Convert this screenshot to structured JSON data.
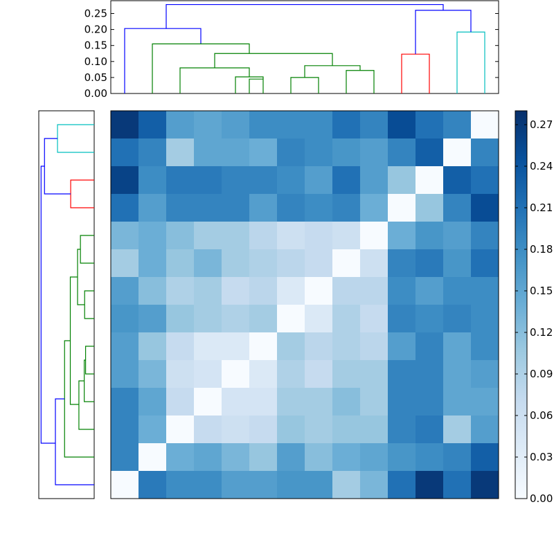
{
  "chart_data": {
    "type": "heatmap",
    "title": "",
    "xlabel": "",
    "ylabel": "",
    "colormap": "Blues",
    "colormap_stops": [
      "#f7fbff",
      "#deebf7",
      "#c6dbef",
      "#9ecae1",
      "#6baed6",
      "#4292c6",
      "#2171b5",
      "#08519c",
      "#08306b"
    ],
    "clim": [
      0,
      0.28
    ],
    "colorbar": {
      "ticks": [
        0.0,
        0.03,
        0.06,
        0.09,
        0.12,
        0.15,
        0.18,
        0.21,
        0.24,
        0.27
      ],
      "tick_labels": [
        "0.00",
        "0.03",
        "0.06",
        "0.09",
        "0.12",
        "0.15",
        "0.18",
        "0.21",
        "0.24",
        "0.27"
      ]
    },
    "matrix": [
      [
        0.27,
        0.23,
        0.16,
        0.15,
        0.16,
        0.18,
        0.18,
        0.18,
        0.21,
        0.19,
        0.25,
        0.21,
        0.19,
        0.0
      ],
      [
        0.21,
        0.19,
        0.1,
        0.15,
        0.15,
        0.14,
        0.19,
        0.18,
        0.17,
        0.16,
        0.19,
        0.23,
        0.0,
        0.19
      ],
      [
        0.26,
        0.18,
        0.2,
        0.2,
        0.19,
        0.19,
        0.18,
        0.16,
        0.21,
        0.16,
        0.11,
        0.0,
        0.23,
        0.21
      ],
      [
        0.21,
        0.16,
        0.19,
        0.19,
        0.19,
        0.16,
        0.19,
        0.18,
        0.19,
        0.14,
        0.0,
        0.11,
        0.19,
        0.25
      ],
      [
        0.13,
        0.14,
        0.12,
        0.1,
        0.1,
        0.08,
        0.06,
        0.07,
        0.06,
        0.0,
        0.14,
        0.17,
        0.16,
        0.19
      ],
      [
        0.1,
        0.14,
        0.11,
        0.13,
        0.1,
        0.09,
        0.08,
        0.07,
        0.0,
        0.06,
        0.19,
        0.2,
        0.17,
        0.21
      ],
      [
        0.16,
        0.12,
        0.09,
        0.1,
        0.07,
        0.08,
        0.04,
        0.0,
        0.08,
        0.08,
        0.18,
        0.16,
        0.18,
        0.18
      ],
      [
        0.17,
        0.16,
        0.11,
        0.1,
        0.09,
        0.1,
        0.0,
        0.04,
        0.09,
        0.07,
        0.19,
        0.18,
        0.19,
        0.18
      ],
      [
        0.16,
        0.11,
        0.07,
        0.04,
        0.04,
        0.0,
        0.1,
        0.08,
        0.09,
        0.08,
        0.16,
        0.19,
        0.15,
        0.18
      ],
      [
        0.16,
        0.13,
        0.06,
        0.05,
        0.0,
        0.04,
        0.09,
        0.07,
        0.1,
        0.1,
        0.19,
        0.19,
        0.15,
        0.16
      ],
      [
        0.19,
        0.15,
        0.07,
        0.0,
        0.05,
        0.05,
        0.1,
        0.1,
        0.12,
        0.1,
        0.19,
        0.19,
        0.15,
        0.15
      ],
      [
        0.19,
        0.14,
        0.0,
        0.07,
        0.06,
        0.07,
        0.11,
        0.1,
        0.11,
        0.11,
        0.19,
        0.2,
        0.1,
        0.16
      ],
      [
        0.19,
        0.0,
        0.14,
        0.15,
        0.13,
        0.11,
        0.16,
        0.12,
        0.14,
        0.15,
        0.17,
        0.18,
        0.19,
        0.23
      ],
      [
        0.0,
        0.2,
        0.18,
        0.18,
        0.16,
        0.16,
        0.17,
        0.17,
        0.1,
        0.13,
        0.21,
        0.27,
        0.21,
        0.27
      ]
    ],
    "dendrogram_top": {
      "ylim": [
        0,
        0.29
      ],
      "ticks": [
        0.0,
        0.05,
        0.1,
        0.15,
        0.2,
        0.25
      ],
      "tick_labels": [
        "0.00",
        "0.05",
        "0.10",
        "0.15",
        "0.20",
        "0.25"
      ],
      "links": [
        {
          "left": 0.5,
          "right": 3.25,
          "height": 0.203,
          "left_base": 0,
          "right_base": 0.155,
          "color": "#0000ff"
        },
        {
          "left": 1.5,
          "right": 5.0,
          "height": 0.155,
          "left_base": 0,
          "right_base": 0.125,
          "color": "#008000"
        },
        {
          "left": 3.75,
          "right": 8.0,
          "height": 0.125,
          "left_base": 0.08,
          "right_base": 0.087,
          "color": "#008000"
        },
        {
          "left": 2.5,
          "right": 5.0,
          "height": 0.08,
          "left_base": 0,
          "right_base": 0.052,
          "color": "#008000"
        },
        {
          "left": 4.5,
          "right": 5.5,
          "height": 0.052,
          "left_base": 0,
          "right_base": 0.045,
          "color": "#008000"
        },
        {
          "left": 7.0,
          "right": 9.0,
          "height": 0.087,
          "left_base": 0.05,
          "right_base": 0.072,
          "color": "#008000"
        },
        {
          "left": 6.5,
          "right": 7.5,
          "height": 0.05,
          "left_base": 0,
          "right_base": 0,
          "color": "#008000"
        },
        {
          "left": 8.5,
          "right": 9.5,
          "height": 0.072,
          "left_base": 0,
          "right_base": 0,
          "color": "#008000"
        },
        {
          "left": 5.0,
          "right": 5.5,
          "height": 0.045,
          "left_base": 0.0,
          "right_base": 0,
          "color": "#008000"
        },
        {
          "left": 10.5,
          "right": 11.5,
          "height": 0.123,
          "left_base": 0,
          "right_base": 0,
          "color": "#ff0000"
        },
        {
          "left": 12.5,
          "right": 13.5,
          "height": 0.192,
          "left_base": 0,
          "right_base": 0,
          "color": "#00bfbf"
        },
        {
          "left": 11.0,
          "right": 13.0,
          "height": 0.26,
          "left_base": 0.123,
          "right_base": 0.192,
          "color": "#0000ff"
        },
        {
          "left": 2.0,
          "right": 12.0,
          "height": 0.278,
          "left_base": 0.203,
          "right_base": 0.26,
          "color": "#0000ff"
        }
      ]
    },
    "dendrogram_left": {
      "ylim": [
        0,
        0.29
      ],
      "links": [
        {
          "top": 0.5,
          "bottom": 1.5,
          "height": 0.192,
          "top_base": 0,
          "bottom_base": 0,
          "color": "#00bfbf"
        },
        {
          "top": 2.5,
          "bottom": 3.5,
          "height": 0.123,
          "top_base": 0,
          "bottom_base": 0,
          "color": "#ff0000"
        },
        {
          "top": 1.0,
          "bottom": 3.0,
          "height": 0.26,
          "top_base": 0.192,
          "bottom_base": 0.123,
          "color": "#0000ff"
        },
        {
          "top": 4.5,
          "bottom": 5.5,
          "height": 0.072,
          "top_base": 0,
          "bottom_base": 0,
          "color": "#008000"
        },
        {
          "top": 6.5,
          "bottom": 7.5,
          "height": 0.05,
          "top_base": 0,
          "bottom_base": 0,
          "color": "#008000"
        },
        {
          "top": 5.0,
          "bottom": 7.0,
          "height": 0.087,
          "top_base": 0.072,
          "bottom_base": 0.05,
          "color": "#008000"
        },
        {
          "top": 8.5,
          "bottom": 9.5,
          "height": 0.045,
          "top_base": 0,
          "bottom_base": 0,
          "color": "#008000"
        },
        {
          "top": 9.0,
          "bottom": 10.5,
          "height": 0.052,
          "top_base": 0.045,
          "bottom_base": 0,
          "color": "#008000"
        },
        {
          "top": 9.75,
          "bottom": 11.5,
          "height": 0.08,
          "top_base": 0.052,
          "bottom_base": 0,
          "color": "#008000"
        },
        {
          "top": 6.0,
          "bottom": 10.6,
          "height": 0.125,
          "top_base": 0.087,
          "bottom_base": 0.08,
          "color": "#008000"
        },
        {
          "top": 8.3,
          "bottom": 12.5,
          "height": 0.155,
          "top_base": 0.125,
          "bottom_base": 0,
          "color": "#008000"
        },
        {
          "top": 10.4,
          "bottom": 13.5,
          "height": 0.203,
          "top_base": 0.155,
          "bottom_base": 0,
          "color": "#0000ff"
        },
        {
          "top": 2.0,
          "bottom": 12.0,
          "height": 0.278,
          "top_base": 0.26,
          "bottom_base": 0.203,
          "color": "#0000ff"
        }
      ]
    }
  }
}
